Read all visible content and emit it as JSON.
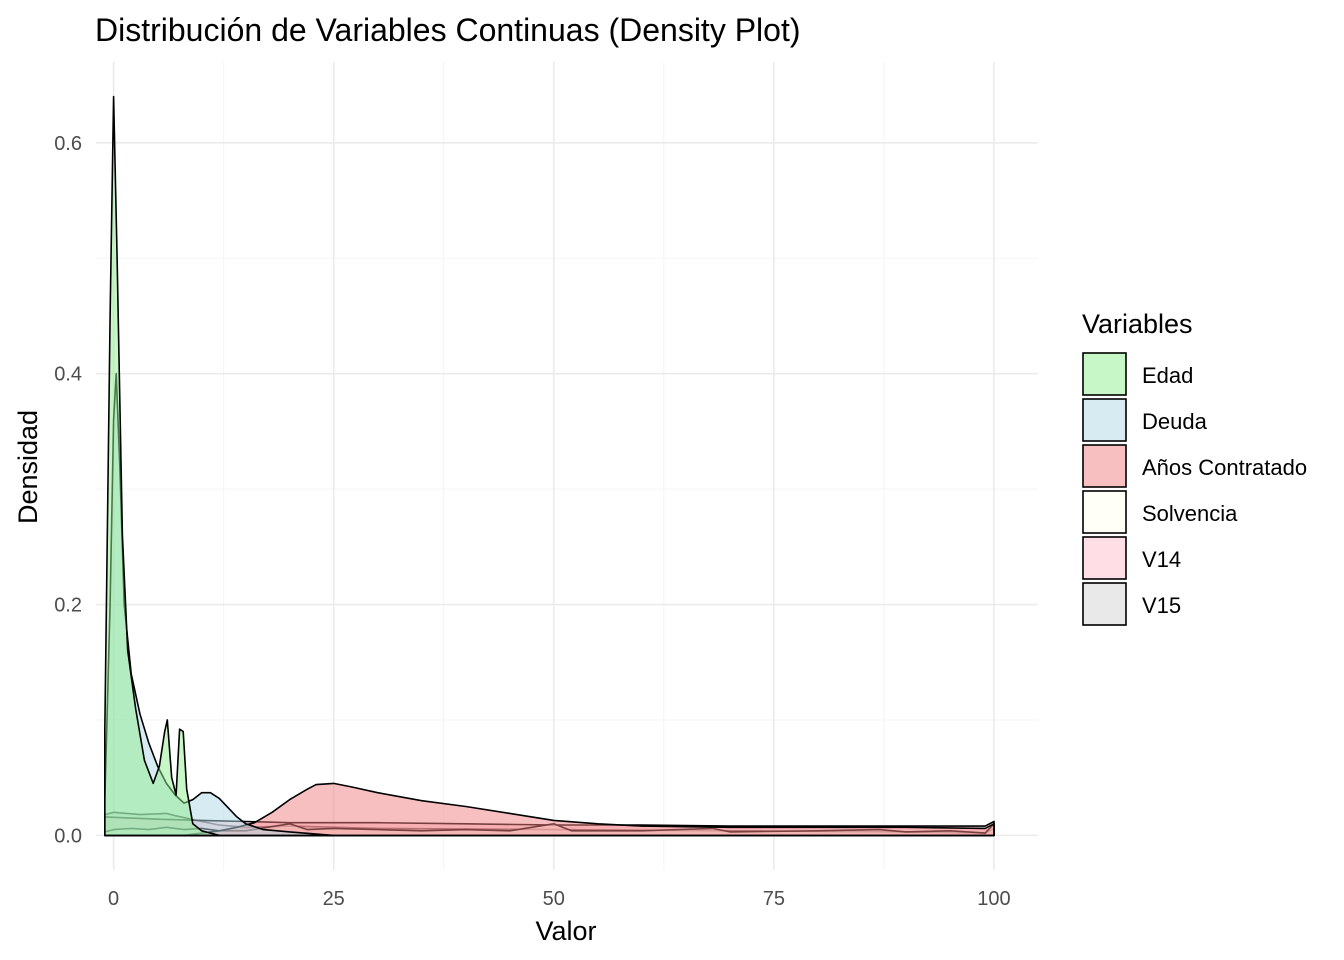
{
  "chart_data": {
    "type": "area",
    "subtype": "density",
    "title": "Distribución de Variables Continuas (Density Plot)",
    "xlabel": "Valor",
    "ylabel": "Densidad",
    "xlim": [
      -2,
      105
    ],
    "ylim": [
      -0.03,
      0.67
    ],
    "x_ticks": [
      0,
      25,
      50,
      75,
      100
    ],
    "x_tick_labels": [
      "0",
      "25",
      "50",
      "75",
      "100"
    ],
    "y_ticks": [
      0.0,
      0.2,
      0.4,
      0.6
    ],
    "y_tick_labels": [
      "0.0",
      "0.2",
      "0.4",
      "0.6"
    ],
    "grid": true,
    "legend": {
      "title": "Variables",
      "position": "right"
    },
    "fill_opacity": 0.5,
    "series": [
      {
        "name": "V15",
        "color": "#d3d3d3",
        "points": [
          [
            -1,
            0.018
          ],
          [
            0,
            0.02
          ],
          [
            3,
            0.018
          ],
          [
            6,
            0.019
          ],
          [
            7,
            0.017
          ],
          [
            10,
            0.012
          ],
          [
            12,
            0.009
          ],
          [
            15,
            0.007
          ],
          [
            20,
            0.008
          ],
          [
            30,
            0.006
          ],
          [
            50,
            0.005
          ],
          [
            70,
            0.004
          ],
          [
            90,
            0.003
          ],
          [
            99,
            0.002
          ],
          [
            100,
            0.006
          ]
        ]
      },
      {
        "name": "V14",
        "color": "#ffc0cb",
        "points": [
          [
            -1,
            0.016
          ],
          [
            2,
            0.015
          ],
          [
            5,
            0.014
          ],
          [
            10,
            0.013
          ],
          [
            15,
            0.012
          ],
          [
            20,
            0.011
          ],
          [
            30,
            0.011
          ],
          [
            40,
            0.01
          ],
          [
            50,
            0.009
          ],
          [
            60,
            0.009
          ],
          [
            70,
            0.008
          ],
          [
            80,
            0.008
          ],
          [
            90,
            0.008
          ],
          [
            99,
            0.008
          ],
          [
            100,
            0.012
          ]
        ]
      },
      {
        "name": "Solvencia",
        "color": "#fffff0",
        "points": [
          [
            -1,
            0.003
          ],
          [
            0,
            0.005
          ],
          [
            2,
            0.006
          ],
          [
            4,
            0.005
          ],
          [
            6,
            0.007
          ],
          [
            8,
            0.005
          ],
          [
            10,
            0.006
          ],
          [
            12,
            0.004
          ],
          [
            15,
            0.004
          ],
          [
            20,
            0.01
          ],
          [
            22,
            0.005
          ],
          [
            25,
            0.006
          ],
          [
            30,
            0.005
          ],
          [
            35,
            0.004
          ],
          [
            40,
            0.005
          ],
          [
            45,
            0.004
          ],
          [
            50,
            0.01
          ],
          [
            52,
            0.004
          ],
          [
            60,
            0.004
          ],
          [
            68,
            0.006
          ],
          [
            70,
            0.003
          ],
          [
            80,
            0.004
          ],
          [
            87,
            0.005
          ],
          [
            90,
            0.003
          ],
          [
            95,
            0.004
          ],
          [
            99,
            0.002
          ],
          [
            100,
            0.01
          ]
        ]
      },
      {
        "name": "Años Contratado",
        "color": "#f08080",
        "points": [
          [
            8,
            0.0
          ],
          [
            10,
            0.002
          ],
          [
            12,
            0.004
          ],
          [
            14,
            0.007
          ],
          [
            16,
            0.011
          ],
          [
            18,
            0.02
          ],
          [
            20,
            0.031
          ],
          [
            22,
            0.04
          ],
          [
            23,
            0.044
          ],
          [
            25,
            0.045
          ],
          [
            27,
            0.042
          ],
          [
            30,
            0.037
          ],
          [
            35,
            0.03
          ],
          [
            40,
            0.025
          ],
          [
            45,
            0.019
          ],
          [
            50,
            0.013
          ],
          [
            55,
            0.01
          ],
          [
            60,
            0.008
          ],
          [
            70,
            0.007
          ],
          [
            80,
            0.007
          ],
          [
            90,
            0.007
          ],
          [
            99,
            0.006
          ],
          [
            100,
            0.01
          ]
        ]
      },
      {
        "name": "Deuda",
        "color": "#add8e6",
        "points": [
          [
            -1,
            0.03
          ],
          [
            -0.4,
            0.2
          ],
          [
            0,
            0.36
          ],
          [
            0.3,
            0.4
          ],
          [
            0.7,
            0.32
          ],
          [
            1.2,
            0.2
          ],
          [
            2,
            0.14
          ],
          [
            3,
            0.105
          ],
          [
            4,
            0.08
          ],
          [
            5,
            0.06
          ],
          [
            6,
            0.045
          ],
          [
            7,
            0.035
          ],
          [
            8,
            0.028
          ],
          [
            9,
            0.031
          ],
          [
            10,
            0.037
          ],
          [
            11,
            0.037
          ],
          [
            12,
            0.032
          ],
          [
            13,
            0.024
          ],
          [
            14,
            0.016
          ],
          [
            15,
            0.01
          ],
          [
            17,
            0.005
          ],
          [
            20,
            0.003
          ],
          [
            25,
            0.0
          ]
        ]
      },
      {
        "name": "Edad",
        "color": "#90ee90",
        "points": [
          [
            -1,
            0.09
          ],
          [
            -0.4,
            0.45
          ],
          [
            0,
            0.64
          ],
          [
            0.4,
            0.5
          ],
          [
            1,
            0.26
          ],
          [
            1.6,
            0.16
          ],
          [
            2.5,
            0.11
          ],
          [
            3.5,
            0.065
          ],
          [
            4.5,
            0.045
          ],
          [
            5.2,
            0.06
          ],
          [
            5.8,
            0.09
          ],
          [
            6.1,
            0.1
          ],
          [
            6.6,
            0.05
          ],
          [
            7.1,
            0.035
          ],
          [
            7.5,
            0.092
          ],
          [
            7.9,
            0.09
          ],
          [
            8.3,
            0.04
          ],
          [
            9,
            0.01
          ],
          [
            10,
            0.004
          ],
          [
            12,
            0.0
          ]
        ]
      }
    ]
  }
}
